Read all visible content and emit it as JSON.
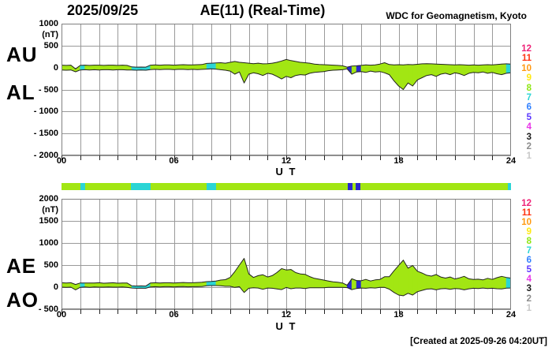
{
  "header": {
    "date": "2025/09/25",
    "title": "AE(11) (Real-Time)",
    "source": "WDC for Geomagnetism, Kyoto"
  },
  "footer": {
    "created_text": "[Created at 2025-09-26 04:20UT]"
  },
  "colors": {
    "band_green": "#a2e613",
    "band_cyan": "#2bd5d5",
    "band_blue": "#2929cc",
    "grid": "#9a9a9a",
    "border": "#808080",
    "curve": "#222222",
    "tick": "#222222"
  },
  "legend": {
    "meaning": "number of stations",
    "items": [
      {
        "label": "12",
        "color": "#ee2277"
      },
      {
        "label": "11",
        "color": "#ff3311"
      },
      {
        "label": "10",
        "color": "#ff9911"
      },
      {
        "label": "9",
        "color": "#ffe811"
      },
      {
        "label": "8",
        "color": "#8ee613"
      },
      {
        "label": "7",
        "color": "#2bd5d5"
      },
      {
        "label": "6",
        "color": "#2e7fff"
      },
      {
        "label": "5",
        "color": "#5a36ff"
      },
      {
        "label": "4",
        "color": "#e836e8"
      },
      {
        "label": "3",
        "color": "#1a1a1a"
      },
      {
        "label": "2",
        "color": "#8c8c8c"
      },
      {
        "label": "1",
        "color": "#c8c8c8"
      }
    ]
  },
  "panels": [
    {
      "label_upper": "AU",
      "label_lower": "AL",
      "unit": "(nT)",
      "x_axis_label": "U T",
      "ytick_labels": [
        "1000",
        "500",
        "0",
        "- 500",
        "- 1000",
        "- 1500",
        "- 2000"
      ],
      "ytick_values": [
        1000,
        500,
        0,
        -500,
        -1000,
        -1500,
        -2000
      ],
      "xtick_labels": [
        "00",
        "06",
        "12",
        "18",
        "24"
      ],
      "xtick_hours": [
        0,
        6,
        12,
        18,
        24
      ]
    },
    {
      "label_upper": "AE",
      "label_lower": "AO",
      "unit": "(nT)",
      "x_axis_label": "U T",
      "ytick_labels": [
        "2000",
        "1500",
        "1000",
        "500",
        "0",
        "- 500"
      ],
      "ytick_values": [
        2000,
        1500,
        1000,
        500,
        0,
        -500
      ],
      "xtick_labels": [
        "00",
        "06",
        "12",
        "18",
        "24"
      ],
      "xtick_hours": [
        0,
        6,
        12,
        18,
        24
      ]
    }
  ],
  "quality_segments": {
    "description": "data-source color bar between panels (hours UT)",
    "segments": [
      {
        "start": 0.0,
        "end": 1.0,
        "color": "green"
      },
      {
        "start": 1.0,
        "end": 1.25,
        "color": "cyan"
      },
      {
        "start": 1.25,
        "end": 3.7,
        "color": "green"
      },
      {
        "start": 3.7,
        "end": 4.75,
        "color": "cyan"
      },
      {
        "start": 4.75,
        "end": 7.75,
        "color": "green"
      },
      {
        "start": 7.75,
        "end": 8.25,
        "color": "cyan"
      },
      {
        "start": 8.25,
        "end": 15.3,
        "color": "green"
      },
      {
        "start": 15.3,
        "end": 15.55,
        "color": "blue"
      },
      {
        "start": 15.55,
        "end": 15.7,
        "color": "green"
      },
      {
        "start": 15.7,
        "end": 15.95,
        "color": "blue"
      },
      {
        "start": 15.95,
        "end": 23.85,
        "color": "green"
      },
      {
        "start": 23.85,
        "end": 24.0,
        "color": "cyan"
      }
    ]
  },
  "chart_data": [
    {
      "type": "area",
      "title": "AU / AL auroral electrojet indices, 2025/09/25",
      "xlabel": "U T",
      "ylabel": "nT",
      "x_start": 0,
      "x_step": 0.25,
      "x_end": 24,
      "xlim": [
        0,
        24
      ],
      "ylim": [
        -2000,
        1000
      ],
      "grid": true,
      "series": [
        {
          "name": "AU",
          "values": [
            55,
            50,
            55,
            -30,
            50,
            55,
            50,
            55,
            55,
            50,
            55,
            55,
            50,
            55,
            50,
            15,
            10,
            12,
            10,
            55,
            60,
            55,
            60,
            60,
            55,
            60,
            65,
            60,
            60,
            65,
            70,
            95,
            100,
            105,
            110,
            100,
            120,
            140,
            120,
            110,
            100,
            90,
            100,
            85,
            90,
            100,
            120,
            150,
            185,
            160,
            140,
            120,
            110,
            100,
            80,
            70,
            65,
            60,
            55,
            50,
            40,
            10,
            35,
            40,
            50,
            60,
            55,
            60,
            80,
            110,
            70,
            60,
            65,
            60,
            70,
            65,
            75,
            85,
            90,
            85,
            80,
            75,
            70,
            65,
            60,
            65,
            60,
            55,
            60,
            55,
            60,
            65,
            60,
            70,
            80,
            85,
            80
          ]
        },
        {
          "name": "AL",
          "values": [
            -55,
            -60,
            -55,
            -95,
            -55,
            -50,
            -55,
            -50,
            -55,
            -50,
            -50,
            -55,
            -50,
            -50,
            -55,
            -55,
            -60,
            -55,
            -60,
            -45,
            -40,
            -45,
            -40,
            -40,
            -45,
            -40,
            -40,
            -45,
            -40,
            -45,
            -40,
            -35,
            -30,
            -35,
            -50,
            -60,
            -80,
            -150,
            -100,
            -350,
            -150,
            -120,
            -140,
            -180,
            -130,
            -150,
            -200,
            -260,
            -200,
            -230,
            -180,
            -160,
            -170,
            -130,
            -110,
            -100,
            -90,
            -70,
            -60,
            -55,
            -50,
            -30,
            -150,
            -100,
            -90,
            -110,
            -80,
            -100,
            -90,
            -120,
            -160,
            -300,
            -420,
            -500,
            -350,
            -420,
            -280,
            -230,
            -180,
            -160,
            -200,
            -150,
            -130,
            -160,
            -120,
            -140,
            -180,
            -130,
            -110,
            -120,
            -100,
            -130,
            -110,
            -140,
            -160,
            -130,
            -120
          ]
        }
      ]
    },
    {
      "type": "area",
      "title": "AE / AO auroral electrojet indices, 2025/09/25",
      "xlabel": "U T",
      "ylabel": "nT",
      "x_start": 0,
      "x_step": 0.25,
      "x_end": 24,
      "xlim": [
        0,
        24
      ],
      "ylim": [
        -500,
        2000
      ],
      "grid": true,
      "series": [
        {
          "name": "AE",
          "values": [
            100,
            95,
            100,
            60,
            95,
            95,
            95,
            95,
            100,
            90,
            95,
            100,
            90,
            95,
            95,
            30,
            25,
            28,
            25,
            95,
            100,
            95,
            100,
            100,
            95,
            100,
            105,
            100,
            100,
            105,
            110,
            125,
            130,
            140,
            160,
            170,
            220,
            350,
            500,
            650,
            300,
            220,
            260,
            280,
            230,
            260,
            330,
            420,
            390,
            400,
            330,
            300,
            290,
            240,
            200,
            180,
            160,
            140,
            120,
            110,
            95,
            45,
            190,
            150,
            145,
            175,
            140,
            165,
            175,
            235,
            235,
            370,
            490,
            610,
            430,
            490,
            360,
            320,
            270,
            250,
            285,
            230,
            205,
            230,
            185,
            210,
            245,
            190,
            175,
            180,
            165,
            200,
            175,
            215,
            245,
            220,
            205
          ]
        },
        {
          "name": "AO",
          "values": [
            0,
            -5,
            0,
            -60,
            -3,
            3,
            -3,
            3,
            0,
            0,
            3,
            0,
            0,
            3,
            -3,
            -20,
            -25,
            -22,
            -25,
            5,
            10,
            5,
            10,
            10,
            5,
            10,
            13,
            8,
            10,
            10,
            15,
            30,
            35,
            35,
            30,
            20,
            20,
            -5,
            10,
            -120,
            -25,
            -15,
            -20,
            -48,
            -20,
            -25,
            -40,
            -55,
            -8,
            -35,
            -20,
            -20,
            -30,
            -15,
            -15,
            -15,
            -13,
            -5,
            -3,
            -3,
            -5,
            -10,
            -58,
            -30,
            -20,
            -25,
            -13,
            -20,
            -5,
            -5,
            -45,
            -120,
            -178,
            -195,
            -140,
            -178,
            -103,
            -73,
            -45,
            -38,
            -60,
            -38,
            -30,
            -48,
            -30,
            -38,
            -60,
            -38,
            -25,
            -33,
            -20,
            -33,
            -25,
            -35,
            -40,
            -23,
            -20
          ]
        }
      ]
    }
  ]
}
